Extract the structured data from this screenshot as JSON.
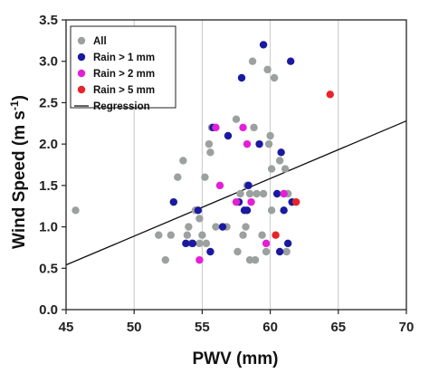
{
  "chart_data": {
    "type": "scatter",
    "xlabel": "PWV (mm)",
    "ylabel_main": "Wind Speed (m s",
    "ylabel_sup": "-1",
    "ylabel_end": ")",
    "xlim": [
      45,
      70
    ],
    "ylim": [
      0.0,
      3.5
    ],
    "xticks": [
      45,
      50,
      55,
      60,
      65,
      70
    ],
    "yticks": [
      "0.0",
      "0.5",
      "1.0",
      "1.5",
      "2.0",
      "2.5",
      "3.0",
      "3.5"
    ],
    "grid": "vertical",
    "legend_position": "top-left",
    "series": [
      {
        "name": "All",
        "color": "#9aa19e",
        "points": [
          [
            45.7,
            1.2
          ],
          [
            51.8,
            0.9
          ],
          [
            52.3,
            0.6
          ],
          [
            52.7,
            0.9
          ],
          [
            53.2,
            1.6
          ],
          [
            53.6,
            1.8
          ],
          [
            53.9,
            0.9
          ],
          [
            54.0,
            1.0
          ],
          [
            54.2,
            0.8
          ],
          [
            54.5,
            1.2
          ],
          [
            54.8,
            1.1
          ],
          [
            54.8,
            0.8
          ],
          [
            55.0,
            0.9
          ],
          [
            55.2,
            1.6
          ],
          [
            55.3,
            0.8
          ],
          [
            55.5,
            2.0
          ],
          [
            55.6,
            1.9
          ],
          [
            55.7,
            2.2
          ],
          [
            56.0,
            1.0
          ],
          [
            56.8,
            1.0
          ],
          [
            57.5,
            2.3
          ],
          [
            57.6,
            0.7
          ],
          [
            57.8,
            1.4
          ],
          [
            58.0,
            0.9
          ],
          [
            58.2,
            1.0
          ],
          [
            58.3,
            1.5
          ],
          [
            58.5,
            1.4
          ],
          [
            58.5,
            0.6
          ],
          [
            58.7,
            3.0
          ],
          [
            58.8,
            2.2
          ],
          [
            58.9,
            0.6
          ],
          [
            59.0,
            1.4
          ],
          [
            59.4,
            0.9
          ],
          [
            59.5,
            1.4
          ],
          [
            59.7,
            0.7
          ],
          [
            59.8,
            2.9
          ],
          [
            59.9,
            2.0
          ],
          [
            60.0,
            2.1
          ],
          [
            60.1,
            1.7
          ],
          [
            60.1,
            1.2
          ],
          [
            60.3,
            2.8
          ],
          [
            60.7,
            1.8
          ],
          [
            61.1,
            1.7
          ],
          [
            61.2,
            0.7
          ],
          [
            61.3,
            1.4
          ]
        ]
      },
      {
        "name": "Rain > 1 mm",
        "color": "#1a1aa0",
        "points": [
          [
            52.9,
            1.3
          ],
          [
            53.8,
            0.8
          ],
          [
            54.3,
            0.8
          ],
          [
            54.7,
            1.2
          ],
          [
            55.6,
            0.7
          ],
          [
            55.8,
            2.2
          ],
          [
            56.5,
            1.0
          ],
          [
            56.9,
            2.1
          ],
          [
            57.7,
            1.3
          ],
          [
            57.9,
            2.8
          ],
          [
            58.1,
            1.2
          ],
          [
            58.3,
            1.2
          ],
          [
            58.4,
            1.5
          ],
          [
            59.2,
            2.0
          ],
          [
            59.5,
            3.2
          ],
          [
            60.5,
            1.4
          ],
          [
            60.7,
            0.7
          ],
          [
            60.8,
            1.9
          ],
          [
            61.0,
            1.2
          ],
          [
            61.3,
            0.8
          ],
          [
            61.5,
            3.0
          ],
          [
            61.6,
            1.3
          ]
        ]
      },
      {
        "name": "Rain > 2 mm",
        "color": "#e41ed6",
        "points": [
          [
            54.8,
            0.6
          ],
          [
            56.0,
            2.2
          ],
          [
            56.3,
            1.5
          ],
          [
            57.5,
            1.3
          ],
          [
            58.0,
            2.2
          ],
          [
            58.3,
            2.0
          ],
          [
            58.6,
            1.3
          ],
          [
            59.7,
            0.8
          ],
          [
            61.0,
            1.4
          ]
        ]
      },
      {
        "name": "Rain > 5 mm",
        "color": "#e8242a",
        "points": [
          [
            60.4,
            0.9
          ],
          [
            61.9,
            1.3
          ],
          [
            64.4,
            2.6
          ]
        ]
      }
    ],
    "regression": {
      "name": "Regression",
      "color": "#111111",
      "x": [
        45,
        70
      ],
      "y": [
        0.54,
        2.28
      ]
    }
  }
}
